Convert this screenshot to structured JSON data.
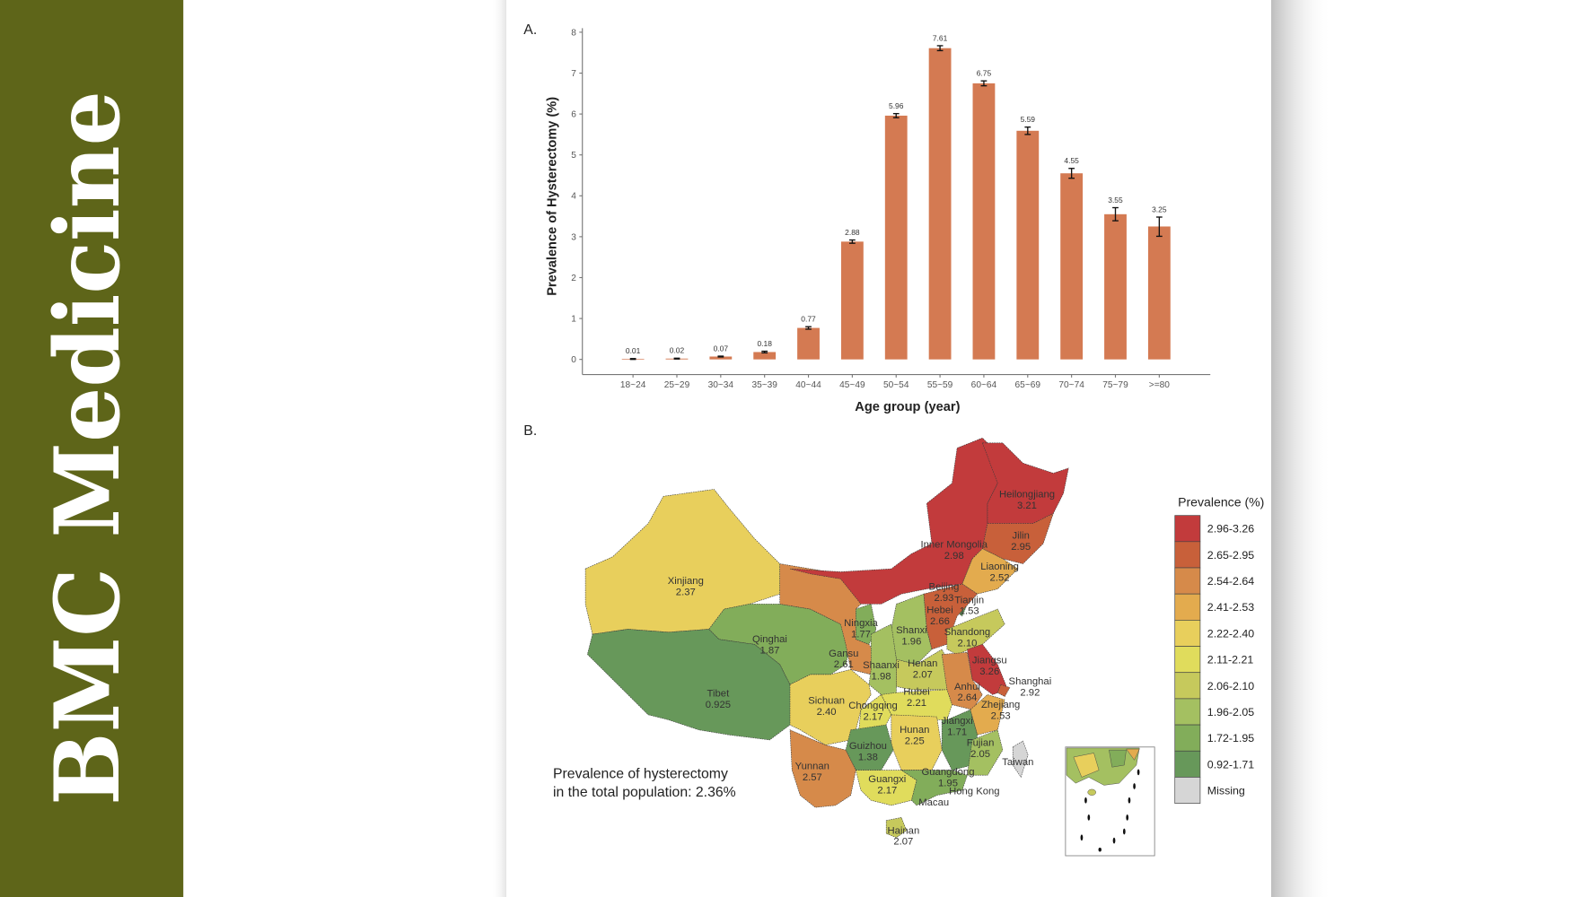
{
  "sidebar": {
    "journal_title": "BMC Medicine",
    "color": "#5e6519"
  },
  "figure": {
    "panel_a_label": "A.",
    "panel_b_label": "B."
  },
  "chart_data": [
    {
      "type": "bar",
      "title": "",
      "xlabel": "Age group (year)",
      "ylabel": "Prevalence of Hysterectomy (%)",
      "ylim": [
        0,
        8
      ],
      "yticks": [
        "0",
        "1",
        "2",
        "3",
        "4",
        "5",
        "6",
        "7",
        "8"
      ],
      "grid": false,
      "bar_color": "#d47a52",
      "categories": [
        "18~24",
        "25~29",
        "30~34",
        "35~39",
        "40~44",
        "45~49",
        "50~54",
        "55~59",
        "60~64",
        "65~69",
        "70~74",
        "75~79",
        ">=80"
      ],
      "values": [
        0.01,
        0.02,
        0.07,
        0.18,
        0.77,
        2.88,
        5.96,
        7.61,
        6.75,
        5.59,
        4.55,
        3.55,
        3.25
      ],
      "value_labels": [
        "0.01",
        "0.02",
        "0.07",
        "0.18",
        "0.77",
        "2.88",
        "5.96",
        "7.61",
        "6.75",
        "5.59",
        "4.55",
        "3.55",
        "3.25"
      ],
      "error_lower": [
        0.0,
        0.01,
        0.06,
        0.16,
        0.74,
        2.84,
        5.91,
        7.55,
        6.69,
        5.5,
        4.43,
        3.39,
        3.01
      ],
      "error_upper": [
        0.02,
        0.03,
        0.08,
        0.2,
        0.8,
        2.92,
        6.01,
        7.67,
        6.81,
        5.68,
        4.67,
        3.71,
        3.48
      ]
    },
    {
      "type": "choropleth",
      "legend_title": "Prevalence (%)",
      "legend_placement": "right",
      "legend": [
        {
          "label": "2.96-3.26",
          "min": 2.96,
          "max": 3.26,
          "color": "#c23b3c"
        },
        {
          "label": "2.65-2.95",
          "min": 2.65,
          "max": 2.95,
          "color": "#c8603a"
        },
        {
          "label": "2.54-2.64",
          "min": 2.54,
          "max": 2.64,
          "color": "#d68a4a"
        },
        {
          "label": "2.41-2.53",
          "min": 2.41,
          "max": 2.53,
          "color": "#e3ab4e"
        },
        {
          "label": "2.22-2.40",
          "min": 2.22,
          "max": 2.4,
          "color": "#e8cf5c"
        },
        {
          "label": "2.11-2.21",
          "min": 2.11,
          "max": 2.21,
          "color": "#e0dc5c"
        },
        {
          "label": "2.06-2.10",
          "min": 2.06,
          "max": 2.1,
          "color": "#c6c95c"
        },
        {
          "label": "1.96-2.05",
          "min": 1.96,
          "max": 2.05,
          "color": "#a4c061"
        },
        {
          "label": "1.72-1.95",
          "min": 1.72,
          "max": 1.95,
          "color": "#82ad5a"
        },
        {
          "label": "0.92-1.71",
          "min": 0.92,
          "max": 1.71,
          "color": "#67985a"
        },
        {
          "label": "Missing",
          "min": null,
          "max": null,
          "color": "#d6d6d6"
        }
      ],
      "regions": [
        {
          "name": "Xinjiang",
          "value": "2.37"
        },
        {
          "name": "Tibet",
          "value": "0.925"
        },
        {
          "name": "Qinghai",
          "value": "1.87"
        },
        {
          "name": "Gansu",
          "value": "2.61"
        },
        {
          "name": "Ningxia",
          "value": "1.77"
        },
        {
          "name": "Inner Mongolia",
          "value": "2.98"
        },
        {
          "name": "Heilongjiang",
          "value": "3.21"
        },
        {
          "name": "Jilin",
          "value": "2.95"
        },
        {
          "name": "Liaoning",
          "value": "2.52"
        },
        {
          "name": "Beijing",
          "value": "2.93"
        },
        {
          "name": "Tianjin",
          "value": "1.53"
        },
        {
          "name": "Hebei",
          "value": "2.66"
        },
        {
          "name": "Shanxi",
          "value": "1.96"
        },
        {
          "name": "Shandong",
          "value": "2.10"
        },
        {
          "name": "Shaanxi",
          "value": "1.98"
        },
        {
          "name": "Henan",
          "value": "2.07"
        },
        {
          "name": "Jiangsu",
          "value": "3.26"
        },
        {
          "name": "Shanghai",
          "value": "2.92"
        },
        {
          "name": "Anhui",
          "value": "2.64"
        },
        {
          "name": "Zhejiang",
          "value": "2.53"
        },
        {
          "name": "Hubei",
          "value": "2.21"
        },
        {
          "name": "Sichuan",
          "value": "2.40"
        },
        {
          "name": "Chongqing",
          "value": "2.17"
        },
        {
          "name": "Jiangxi",
          "value": "1.71"
        },
        {
          "name": "Hunan",
          "value": "2.25"
        },
        {
          "name": "Fujian",
          "value": "2.05"
        },
        {
          "name": "Guizhou",
          "value": "1.38"
        },
        {
          "name": "Yunnan",
          "value": "2.57"
        },
        {
          "name": "Guangxi",
          "value": "2.17"
        },
        {
          "name": "Guangdong",
          "value": "1.95"
        },
        {
          "name": "Hainan",
          "value": "2.07"
        },
        {
          "name": "Taiwan",
          "value": ""
        },
        {
          "name": "Hong Kong",
          "value": ""
        },
        {
          "name": "Macau",
          "value": ""
        }
      ],
      "annotation_line1": "Prevalence of hysterectomy",
      "annotation_line2": "in the total population: 2.36%"
    }
  ]
}
